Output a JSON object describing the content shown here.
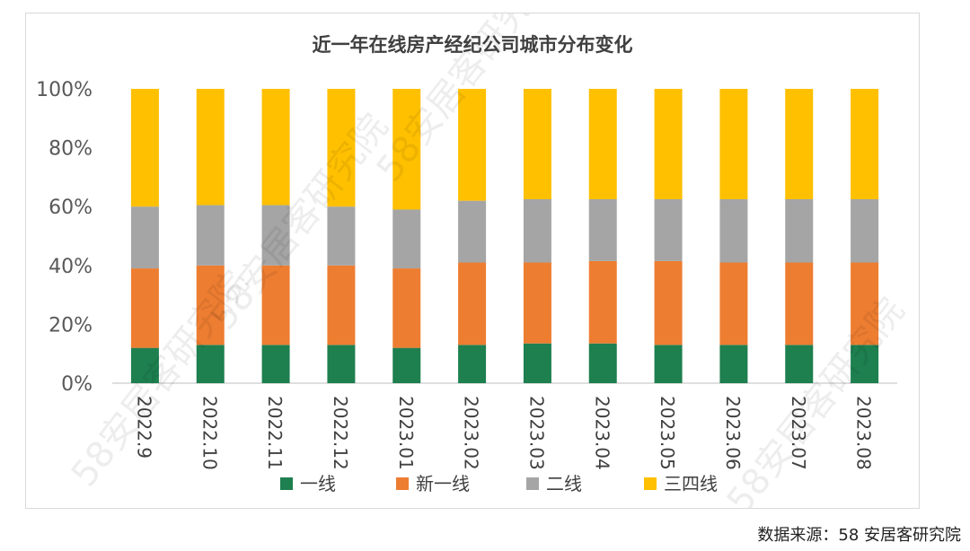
{
  "chart_data": {
    "type": "bar",
    "stacked": true,
    "title": "近一年在线房产经纪公司城市分布变化",
    "categories": [
      "2022.9",
      "2022.10",
      "2022.11",
      "2022.12",
      "2023.01",
      "2023.02",
      "2023.03",
      "2023.04",
      "2023.05",
      "2023.06",
      "2023.07",
      "2023.08"
    ],
    "series": [
      {
        "name": "一线",
        "color": "#1e7f4f",
        "values": [
          12,
          13,
          13,
          13,
          12,
          13,
          13.5,
          13.5,
          13,
          13,
          13,
          13
        ]
      },
      {
        "name": "新一线",
        "color": "#ed7d31",
        "values": [
          27,
          27,
          27,
          27,
          27,
          28,
          27.5,
          28,
          28.5,
          28,
          28,
          28
        ]
      },
      {
        "name": "二线",
        "color": "#a5a5a5",
        "values": [
          21,
          20.5,
          20.5,
          20,
          20,
          21,
          21.5,
          21,
          21,
          21.5,
          21.5,
          21.5
        ]
      },
      {
        "name": "三四线",
        "color": "#ffc000",
        "values": [
          40,
          39.5,
          39.5,
          40,
          41,
          38,
          37.5,
          37.5,
          37.5,
          37.5,
          37.5,
          37.5
        ]
      }
    ],
    "ylim": [
      0,
      100
    ],
    "yticks": [
      "0%",
      "20%",
      "40%",
      "60%",
      "80%",
      "100%"
    ],
    "legend_position": "bottom"
  },
  "watermark": "58安居客研究院",
  "source_note": "数据来源：58 安居客研究院"
}
